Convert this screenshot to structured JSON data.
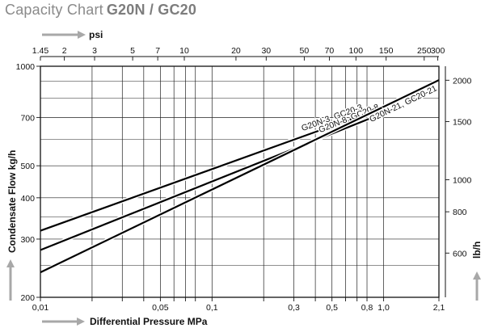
{
  "title": {
    "main": "Capacity Chart",
    "model": "G20N / GC20"
  },
  "chart_data": {
    "type": "line",
    "xlabel": "Differential Pressure MPa",
    "ylabel": "Condensate Flow kg/h",
    "top_axis_label": "psi",
    "right_axis_label": "lb/h",
    "x_scale": "log",
    "y_scale": "log",
    "xlim": [
      0.01,
      2.1
    ],
    "ylim": [
      200,
      1000
    ],
    "grid": true,
    "x_ticks": [
      {
        "v": 0.01,
        "label": "0,01"
      },
      {
        "v": 0.02,
        "label": ""
      },
      {
        "v": 0.03,
        "label": ""
      },
      {
        "v": 0.04,
        "label": ""
      },
      {
        "v": 0.05,
        "label": "0,05"
      },
      {
        "v": 0.06,
        "label": ""
      },
      {
        "v": 0.07,
        "label": ""
      },
      {
        "v": 0.08,
        "label": ""
      },
      {
        "v": 0.1,
        "label": "0,1"
      },
      {
        "v": 0.2,
        "label": ""
      },
      {
        "v": 0.3,
        "label": "0,3"
      },
      {
        "v": 0.4,
        "label": ""
      },
      {
        "v": 0.5,
        "label": "0,5"
      },
      {
        "v": 0.6,
        "label": ""
      },
      {
        "v": 0.7,
        "label": ""
      },
      {
        "v": 0.8,
        "label": "0,8"
      },
      {
        "v": 1.0,
        "label": "1,0"
      },
      {
        "v": 2.1,
        "label": "2,1"
      }
    ],
    "psi_ticks": [
      {
        "v": 1.45,
        "label": "1.45"
      },
      {
        "v": 2,
        "label": "2"
      },
      {
        "v": 3,
        "label": "3"
      },
      {
        "v": 5,
        "label": "5"
      },
      {
        "v": 7,
        "label": "7"
      },
      {
        "v": 10,
        "label": "10"
      },
      {
        "v": 20,
        "label": "20"
      },
      {
        "v": 30,
        "label": "30"
      },
      {
        "v": 50,
        "label": "50"
      },
      {
        "v": 70,
        "label": "70"
      },
      {
        "v": 100,
        "label": "100"
      },
      {
        "v": 150,
        "label": "150"
      },
      {
        "v": 250,
        "label": "250"
      },
      {
        "v": 300,
        "label": "300"
      }
    ],
    "y_ticks": [
      {
        "v": 200,
        "label": "200"
      },
      {
        "v": 300,
        "label": "300"
      },
      {
        "v": 400,
        "label": "400"
      },
      {
        "v": 500,
        "label": "500"
      },
      {
        "v": 700,
        "label": "700"
      },
      {
        "v": 1000,
        "label": "1000"
      }
    ],
    "y_minor": [
      250,
      350,
      600,
      800,
      900
    ],
    "lbh_ticks": [
      {
        "v": 600,
        "label": "600"
      },
      {
        "v": 800,
        "label": "800"
      },
      {
        "v": 1000,
        "label": "1000"
      },
      {
        "v": 1500,
        "label": "1500"
      },
      {
        "v": 2000,
        "label": "2000"
      }
    ],
    "series": [
      {
        "name": "G20N-3, GC20-3",
        "x": [
          0.01,
          0.8
        ],
        "y": [
          318,
          720
        ]
      },
      {
        "name": "G20N-8, GC20-8",
        "x": [
          0.01,
          1.0
        ],
        "y": [
          278,
          722
        ]
      },
      {
        "name": "G20N-21, GC20-21",
        "x": [
          0.01,
          2.1
        ],
        "y": [
          238,
          908
        ]
      }
    ]
  }
}
